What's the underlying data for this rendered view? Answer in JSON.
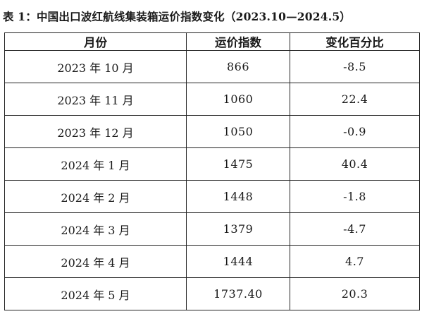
{
  "caption": "表 1：中国出口波红航线集装箱运价指数变化（2023.10—2024.5）",
  "table": {
    "headers": [
      "月份",
      "运价指数",
      "变化百分比"
    ],
    "rows": [
      {
        "month": "2023 年 10 月",
        "index": "866",
        "change": "-8.5"
      },
      {
        "month": "2023 年 11 月",
        "index": "1060",
        "change": "22.4"
      },
      {
        "month": "2023 年 12 月",
        "index": "1050",
        "change": "-0.9"
      },
      {
        "month": "2024 年 1 月",
        "index": "1475",
        "change": "40.4"
      },
      {
        "month": "2024 年 2 月",
        "index": "1448",
        "change": "-1.8"
      },
      {
        "month": "2024 年 3 月",
        "index": "1379",
        "change": "-4.7"
      },
      {
        "month": "2024 年 4 月",
        "index": "1444",
        "change": "4.7"
      },
      {
        "month": "2024 年 5 月",
        "index": "1737.40",
        "change": "20.3"
      }
    ]
  }
}
